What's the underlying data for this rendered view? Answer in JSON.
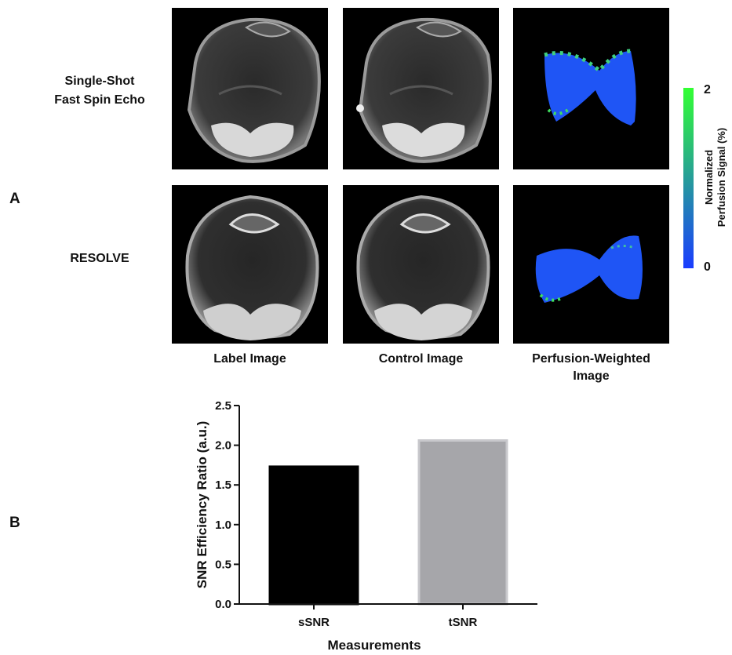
{
  "panel_a": {
    "letter": "A",
    "rows": [
      {
        "line1": "Single-Shot",
        "line2": "Fast Spin Echo"
      },
      {
        "line1": "RESOLVE",
        "line2": ""
      }
    ],
    "columns": [
      {
        "line1": "Label Image",
        "line2": ""
      },
      {
        "line1": "Control Image",
        "line2": ""
      },
      {
        "line1": "Perfusion-Weighted",
        "line2": "Image"
      }
    ],
    "colorbar": {
      "max_label": "2",
      "min_label": "0",
      "title_line1": "Normalized",
      "title_line2": "Perfusion Signal  (%)",
      "color_low": "#1a3cff",
      "color_high": "#33ff33"
    }
  },
  "panel_b": {
    "letter": "B"
  },
  "chart_data": {
    "type": "bar",
    "categories": [
      "sSNR",
      "tSNR"
    ],
    "values": [
      1.73,
      2.06
    ],
    "colors": [
      "#000000",
      "#a6a6aa"
    ],
    "xlabel": "Measurements",
    "ylabel": "SNR Efficiency Ratio (a.u.)",
    "ylim": [
      0,
      2.5
    ],
    "yticks": [
      "0.0",
      "0.5",
      "1.0",
      "1.5",
      "2.0",
      "2.5"
    ],
    "grid": false
  }
}
